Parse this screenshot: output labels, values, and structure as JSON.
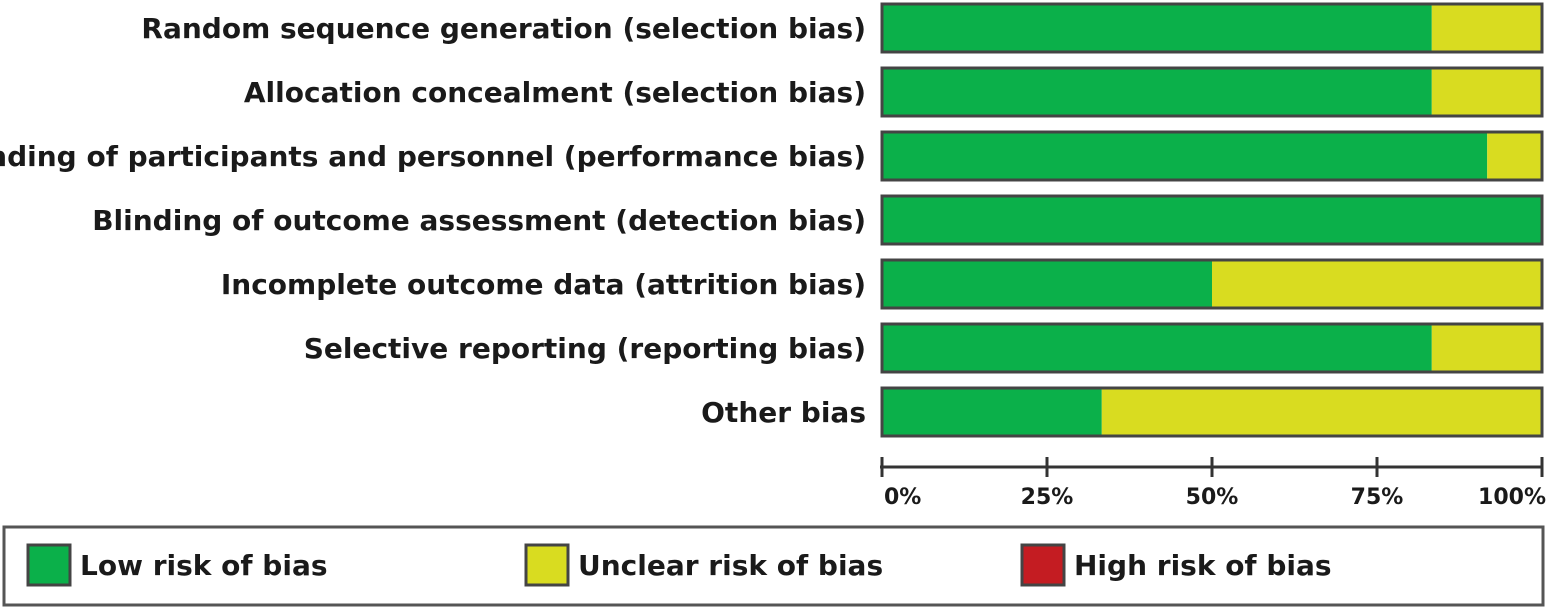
{
  "colors": {
    "low": "#0bb04a",
    "unclear": "#d9dc20",
    "high": "#c41c22",
    "border": "#444444"
  },
  "chart_data": {
    "type": "bar",
    "orientation": "horizontal",
    "stacked": true,
    "percent_scale": true,
    "categories": [
      "Random sequence generation (selection bias)",
      "Allocation concealment (selection bias)",
      "Blinding of participants and personnel (performance bias)",
      "Blinding of outcome assessment (detection bias)",
      "Incomplete outcome data (attrition bias)",
      "Selective reporting (reporting bias)",
      "Other bias"
    ],
    "series": [
      {
        "name": "Low risk of bias",
        "key": "low",
        "values": [
          83.3,
          83.3,
          91.7,
          100,
          50,
          83.3,
          33.3
        ]
      },
      {
        "name": "Unclear risk of bias",
        "key": "unclear",
        "values": [
          16.7,
          16.7,
          8.3,
          0,
          50,
          16.7,
          66.7
        ]
      },
      {
        "name": "High risk of bias",
        "key": "high",
        "values": [
          0,
          0,
          0,
          0,
          0,
          0,
          0
        ]
      }
    ],
    "xlim": [
      0,
      100
    ],
    "x_ticks": [
      "0%",
      "25%",
      "50%",
      "75%",
      "100%"
    ],
    "legend_position": "bottom"
  }
}
